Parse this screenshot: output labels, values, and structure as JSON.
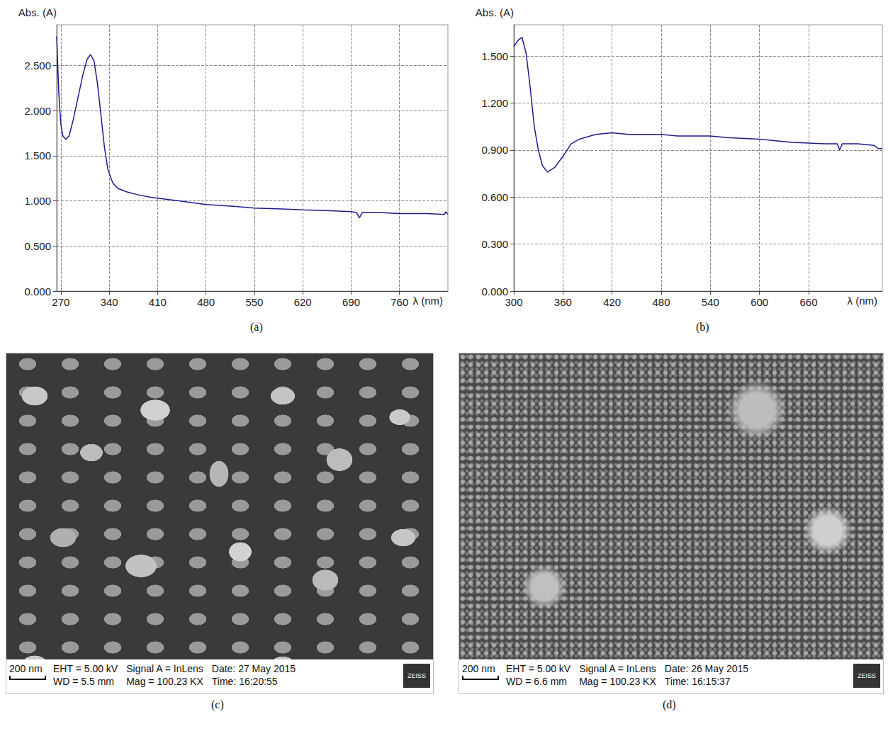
{
  "chart_data": [
    {
      "type": "line",
      "title": "(a)",
      "xlabel": "λ (nm)",
      "ylabel": "Abs. (A)",
      "color": "#1c1c8a",
      "grid": true,
      "xlim": [
        264,
        830
      ],
      "xticks": [
        270,
        340,
        410,
        480,
        550,
        620,
        690,
        760
      ],
      "ylim": [
        0,
        2.95
      ],
      "yticks": [
        {
          "value": 0,
          "label": "0.000"
        },
        {
          "value": 0.5,
          "label": "0.500"
        },
        {
          "value": 1,
          "label": "1.000"
        },
        {
          "value": 1.5,
          "label": "1.500"
        },
        {
          "value": 2,
          "label": "2.000"
        },
        {
          "value": 2.5,
          "label": "2.500"
        }
      ],
      "x": [
        264,
        267,
        270,
        273,
        277,
        282,
        288,
        295,
        302,
        308,
        313,
        318,
        323,
        328,
        333,
        338,
        345,
        352,
        365,
        380,
        400,
        420,
        450,
        480,
        520,
        550,
        590,
        620,
        660,
        690,
        698,
        702,
        706,
        730,
        760,
        800,
        825,
        827,
        830
      ],
      "values": [
        2.82,
        2.2,
        1.85,
        1.72,
        1.68,
        1.72,
        1.9,
        2.15,
        2.4,
        2.57,
        2.62,
        2.55,
        2.3,
        1.95,
        1.6,
        1.35,
        1.2,
        1.14,
        1.1,
        1.07,
        1.04,
        1.02,
        0.99,
        0.96,
        0.94,
        0.92,
        0.91,
        0.9,
        0.89,
        0.88,
        0.87,
        0.81,
        0.87,
        0.87,
        0.86,
        0.86,
        0.85,
        0.88,
        0.85
      ]
    },
    {
      "type": "line",
      "title": "(b)",
      "xlabel": "λ (nm)",
      "ylabel": "Abs. (A)",
      "color": "#1c1c8a",
      "grid": true,
      "xlim": [
        300,
        750
      ],
      "xticks": [
        300,
        360,
        420,
        480,
        540,
        600,
        660
      ],
      "ylim": [
        0,
        1.7
      ],
      "yticks": [
        {
          "value": 0,
          "label": "0.000"
        },
        {
          "value": 0.3,
          "label": "0.300"
        },
        {
          "value": 0.6,
          "label": "0.600"
        },
        {
          "value": 0.9,
          "label": "0.900"
        },
        {
          "value": 1.2,
          "label": "1.200"
        },
        {
          "value": 1.5,
          "label": "1.500"
        }
      ],
      "x": [
        300,
        305,
        310,
        315,
        320,
        325,
        330,
        335,
        341,
        350,
        360,
        370,
        380,
        400,
        420,
        440,
        460,
        480,
        500,
        520,
        540,
        560,
        600,
        640,
        680,
        695,
        698,
        701,
        720,
        740,
        745,
        750
      ],
      "values": [
        1.56,
        1.6,
        1.62,
        1.52,
        1.3,
        1.05,
        0.9,
        0.8,
        0.76,
        0.79,
        0.86,
        0.94,
        0.97,
        1.0,
        1.01,
        1.0,
        1.0,
        1.0,
        0.99,
        0.99,
        0.99,
        0.98,
        0.97,
        0.95,
        0.94,
        0.94,
        0.9,
        0.94,
        0.94,
        0.93,
        0.91,
        0.91
      ]
    }
  ],
  "images": [
    {
      "label": "(c)",
      "scale_bar": "200 nm",
      "info": [
        "EHT = 5.00 kV",
        "Signal A = InLens",
        "Date: 27 May 2015",
        "WD = 5.5 mm",
        "Mag = 100.23 KX",
        "Time: 16:20:55"
      ],
      "logo": "ZEISS"
    },
    {
      "label": "(d)",
      "scale_bar": "200 nm",
      "info": [
        "EHT = 5.00 kV",
        "Signal A = InLens",
        "Date: 26 May 2015",
        "WD = 6.6 mm",
        "Mag = 100.23 KX",
        "Time: 16:15:37"
      ],
      "logo": "ZEISS"
    }
  ]
}
